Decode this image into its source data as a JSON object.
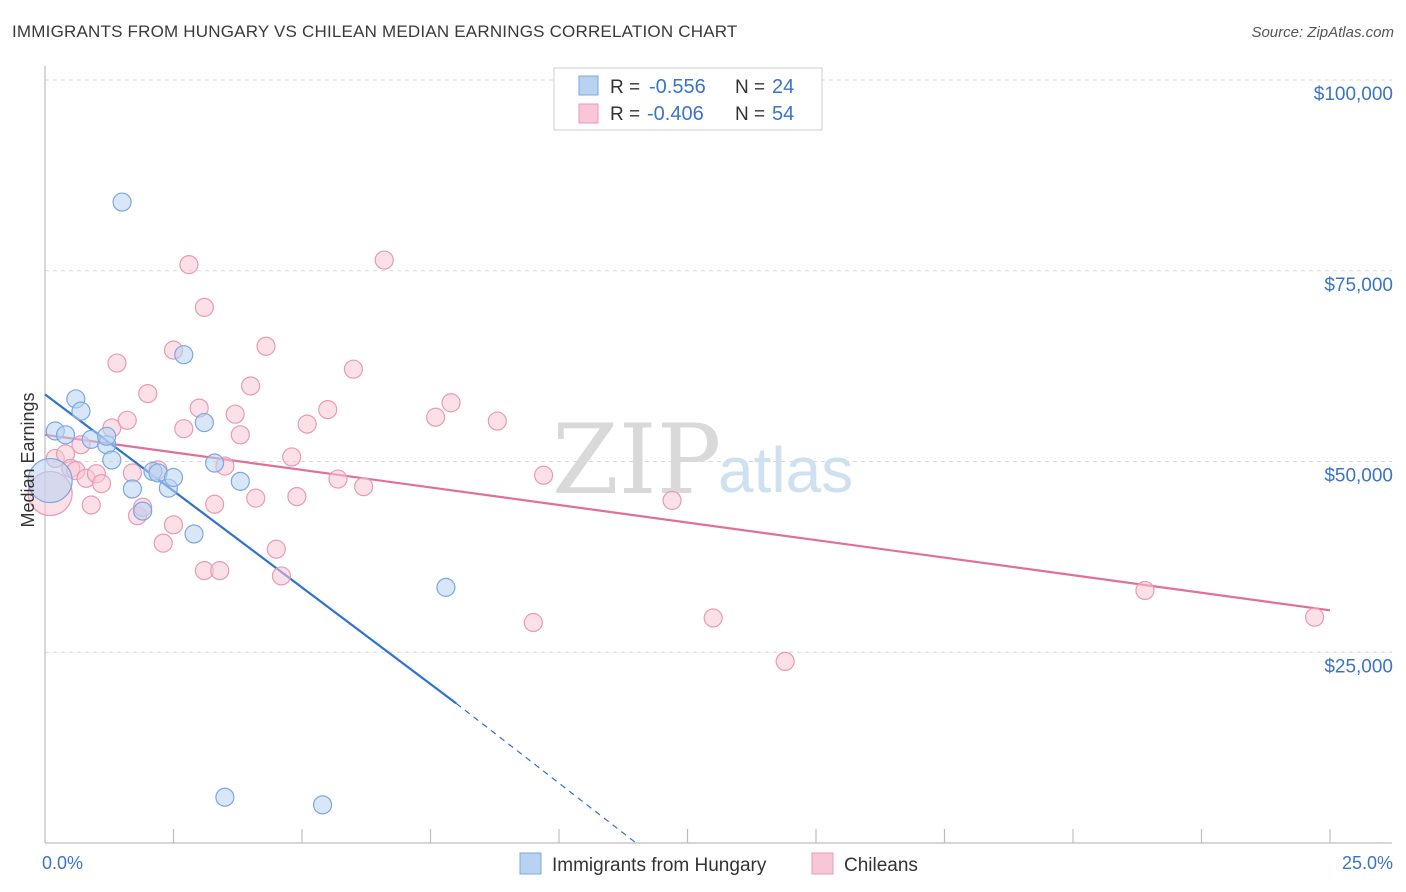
{
  "title": "IMMIGRANTS FROM HUNGARY VS CHILEAN MEDIAN EARNINGS CORRELATION CHART",
  "source": "Source: ZipAtlas.com",
  "watermark": {
    "zip": "ZIP",
    "atlas": "atlas"
  },
  "colors": {
    "blue_fill": "#b8d3f2",
    "blue_stroke": "#7aa8df",
    "blue_line": "#2f72cf",
    "pink_fill": "#f8c6d6",
    "pink_stroke": "#e89ab4",
    "pink_line": "#e0709a",
    "tick_label": "#3a74c8",
    "grid": "#d8d8d8"
  },
  "stats": [
    {
      "r_label": "R =",
      "r_value": "-0.556",
      "n_label": "N =",
      "n_value": "24"
    },
    {
      "r_label": "R =",
      "r_value": "-0.406",
      "n_label": "N =",
      "n_value": "54"
    }
  ],
  "chart_data": {
    "type": "scatter",
    "title": "IMMIGRANTS FROM HUNGARY VS CHILEAN MEDIAN EARNINGS CORRELATION CHART",
    "xlabel": "",
    "ylabel": "Median Earnings",
    "xlim": [
      0,
      25
    ],
    "ylim": [
      0,
      105000
    ],
    "x_tick_labels": [
      "0.0%",
      "25.0%"
    ],
    "y_ticks": [
      25000,
      50000,
      75000,
      100000
    ],
    "y_tick_labels": [
      "$25,000",
      "$50,000",
      "$75,000",
      "$100,000"
    ],
    "grid": true,
    "legend_position": "bottom-center",
    "series": [
      {
        "name": "Immigrants from Hungary",
        "color": "blue",
        "trend": {
          "x": [
            0.0,
            8.0
          ],
          "y": [
            58800,
            18300
          ],
          "dashed_to": [
            11.5,
            0
          ]
        },
        "points": [
          {
            "x": 0.1,
            "y": 47500,
            "size": "xl"
          },
          {
            "x": 0.2,
            "y": 54000
          },
          {
            "x": 0.4,
            "y": 53500
          },
          {
            "x": 0.6,
            "y": 58200
          },
          {
            "x": 0.7,
            "y": 56600
          },
          {
            "x": 0.9,
            "y": 52900
          },
          {
            "x": 1.2,
            "y": 52200
          },
          {
            "x": 1.2,
            "y": 53300
          },
          {
            "x": 1.3,
            "y": 50200
          },
          {
            "x": 1.5,
            "y": 84000
          },
          {
            "x": 1.7,
            "y": 46400
          },
          {
            "x": 1.9,
            "y": 43500
          },
          {
            "x": 2.1,
            "y": 48700
          },
          {
            "x": 2.2,
            "y": 48500
          },
          {
            "x": 2.4,
            "y": 46500
          },
          {
            "x": 2.5,
            "y": 47900
          },
          {
            "x": 2.7,
            "y": 64000
          },
          {
            "x": 2.9,
            "y": 40500
          },
          {
            "x": 3.1,
            "y": 55100
          },
          {
            "x": 3.3,
            "y": 49800
          },
          {
            "x": 3.5,
            "y": 6000
          },
          {
            "x": 3.8,
            "y": 47400
          },
          {
            "x": 5.4,
            "y": 5000
          },
          {
            "x": 7.8,
            "y": 33500
          }
        ]
      },
      {
        "name": "Chileans",
        "color": "pink",
        "trend": {
          "x": [
            0.0,
            25.0
          ],
          "y": [
            53500,
            30500
          ]
        },
        "points": [
          {
            "x": 0.1,
            "y": 45800,
            "size": "xl"
          },
          {
            "x": 0.2,
            "y": 50400
          },
          {
            "x": 0.4,
            "y": 51000
          },
          {
            "x": 0.5,
            "y": 49100
          },
          {
            "x": 0.6,
            "y": 48800
          },
          {
            "x": 0.7,
            "y": 52200
          },
          {
            "x": 0.8,
            "y": 47800
          },
          {
            "x": 0.9,
            "y": 44300
          },
          {
            "x": 1.0,
            "y": 48400
          },
          {
            "x": 1.1,
            "y": 47100
          },
          {
            "x": 1.3,
            "y": 54400
          },
          {
            "x": 1.4,
            "y": 62900
          },
          {
            "x": 1.6,
            "y": 55400
          },
          {
            "x": 1.7,
            "y": 48500
          },
          {
            "x": 1.8,
            "y": 42900
          },
          {
            "x": 1.9,
            "y": 44000
          },
          {
            "x": 2.0,
            "y": 58900
          },
          {
            "x": 2.2,
            "y": 48900
          },
          {
            "x": 2.3,
            "y": 39300
          },
          {
            "x": 2.5,
            "y": 41700
          },
          {
            "x": 2.5,
            "y": 64600
          },
          {
            "x": 2.7,
            "y": 54300
          },
          {
            "x": 2.8,
            "y": 75800
          },
          {
            "x": 3.0,
            "y": 57000
          },
          {
            "x": 3.1,
            "y": 35700
          },
          {
            "x": 3.1,
            "y": 70200
          },
          {
            "x": 3.3,
            "y": 44400
          },
          {
            "x": 3.4,
            "y": 35700
          },
          {
            "x": 3.5,
            "y": 49400
          },
          {
            "x": 3.7,
            "y": 56200
          },
          {
            "x": 3.8,
            "y": 53500
          },
          {
            "x": 4.0,
            "y": 59900
          },
          {
            "x": 4.1,
            "y": 45200
          },
          {
            "x": 4.3,
            "y": 65100
          },
          {
            "x": 4.5,
            "y": 38500
          },
          {
            "x": 4.6,
            "y": 35000
          },
          {
            "x": 4.8,
            "y": 50600
          },
          {
            "x": 4.9,
            "y": 45400
          },
          {
            "x": 5.1,
            "y": 54900
          },
          {
            "x": 5.5,
            "y": 56800
          },
          {
            "x": 5.7,
            "y": 47700
          },
          {
            "x": 6.0,
            "y": 62100
          },
          {
            "x": 6.2,
            "y": 46700
          },
          {
            "x": 6.6,
            "y": 76400
          },
          {
            "x": 7.6,
            "y": 55800
          },
          {
            "x": 7.9,
            "y": 57700
          },
          {
            "x": 8.8,
            "y": 55300
          },
          {
            "x": 9.5,
            "y": 28900
          },
          {
            "x": 9.7,
            "y": 48200
          },
          {
            "x": 12.2,
            "y": 44900
          },
          {
            "x": 13.0,
            "y": 29500
          },
          {
            "x": 14.4,
            "y": 23800
          },
          {
            "x": 21.4,
            "y": 33100
          },
          {
            "x": 24.7,
            "y": 29600
          }
        ]
      }
    ]
  }
}
